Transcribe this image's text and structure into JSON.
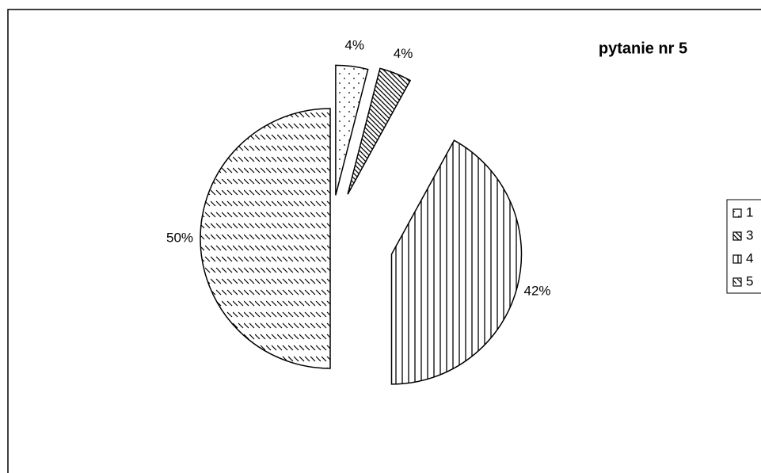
{
  "chart_data": {
    "type": "pie",
    "title": "pytanie nr 5",
    "categories": [
      "1",
      "3",
      "4",
      "5"
    ],
    "values": [
      4,
      4,
      42,
      50
    ],
    "value_labels": [
      "4%",
      "4%",
      "42%",
      "50%"
    ],
    "legend": "right"
  }
}
